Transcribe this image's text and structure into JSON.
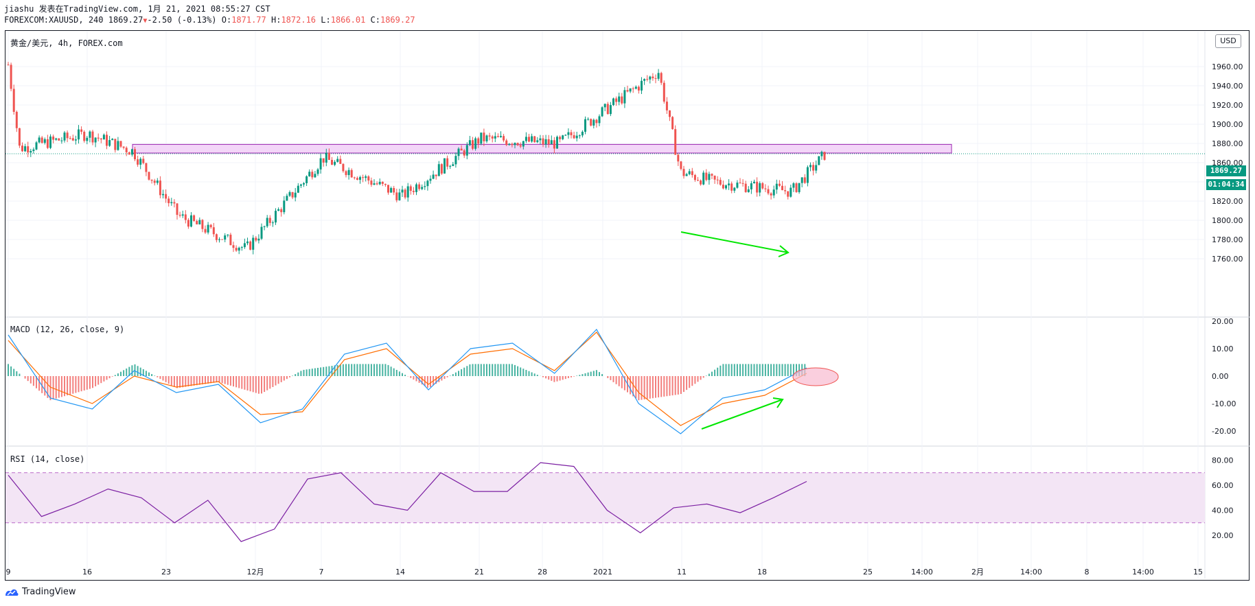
{
  "header": {
    "line1": "jiashu 发表在TradingView.com, 1月 21, 2021 08:55:27 CST",
    "symbol": "FOREXCOM:XAUUSD, 240",
    "last": "1869.27",
    "change": "-2.50 (-0.13%)",
    "o_label": "O:",
    "o_value": "1871.77",
    "h_label": "H:",
    "h_value": "1872.16",
    "l_label": "L:",
    "l_value": "1866.01",
    "c_label": "C:",
    "c_value": "1869.27"
  },
  "price_pane": {
    "title": "黄金/美元, 4h, FOREX.com",
    "currency_button": "USD",
    "last_price_tag": "1869.27",
    "countdown_tag": "01:04:34"
  },
  "macd_pane": {
    "title": "MACD (12, 26, close, 9)"
  },
  "rsi_pane": {
    "title": "RSI (14, close)"
  },
  "footer": {
    "brand": "TradingView"
  },
  "colors": {
    "up": "#089981",
    "down": "#ef5350",
    "macd_line": "#2196f3",
    "signal_line": "#ff6d00",
    "rsi_line": "#7b1fa2",
    "rsi_band": "#f3e5f5",
    "zone_fill": "#f3d6f8",
    "zone_border": "#9c27b0",
    "arrow": "#00e600",
    "ellipse": "#f8bbd0"
  },
  "chart_data": [
    {
      "type": "candlestick",
      "title": "黄金/美元, 4h, FOREX.com",
      "x_ticks": [
        "9",
        "16",
        "23",
        "12月",
        "7",
        "14",
        "21",
        "28",
        "2021",
        "11",
        "18",
        "25",
        "14:00",
        "2月",
        "14:00",
        "8",
        "14:00",
        "15"
      ],
      "y_ticks": [
        1760,
        1780,
        1800,
        1820,
        1840,
        1860,
        1880,
        1900,
        1920,
        1940,
        1960
      ],
      "ylim": [
        1750,
        1975
      ],
      "last_close": 1869.27,
      "key_closes": [
        {
          "date": "11-09",
          "price": 1962
        },
        {
          "date": "11-10",
          "price": 1875
        },
        {
          "date": "11-16",
          "price": 1890
        },
        {
          "date": "11-20",
          "price": 1872
        },
        {
          "date": "11-24",
          "price": 1805
        },
        {
          "date": "11-30",
          "price": 1770
        },
        {
          "date": "12-07",
          "price": 1865
        },
        {
          "date": "12-14",
          "price": 1825
        },
        {
          "date": "12-21",
          "price": 1885
        },
        {
          "date": "12-28",
          "price": 1880
        },
        {
          "date": "01-06",
          "price": 1955
        },
        {
          "date": "01-08",
          "price": 1850
        },
        {
          "date": "01-11",
          "price": 1840
        },
        {
          "date": "01-18",
          "price": 1830
        },
        {
          "date": "01-21",
          "price": 1869.27
        }
      ],
      "resistance_zone": [
        1870,
        1879
      ],
      "annotation": "divergence arrow (lower lows in price)"
    },
    {
      "type": "line",
      "title": "MACD (12, 26, close, 9)",
      "y_ticks": [
        -20,
        -10,
        0,
        10,
        20
      ],
      "ylim": [
        -22,
        22
      ],
      "series": [
        {
          "name": "MACD",
          "values": [
            15,
            -8,
            -12,
            2,
            -6,
            -3,
            -17,
            -12,
            8,
            12,
            -5,
            10,
            12,
            1,
            17,
            -10,
            -21,
            -8,
            -5,
            3
          ]
        },
        {
          "name": "Signal",
          "values": [
            13,
            -4,
            -10,
            0,
            -4,
            -2,
            -14,
            -13,
            6,
            10,
            -3,
            8,
            10,
            2,
            16,
            -6,
            -18,
            -10,
            -7,
            1
          ]
        }
      ]
    },
    {
      "type": "line",
      "title": "RSI (14, close)",
      "y_ticks": [
        20,
        40,
        60,
        80
      ],
      "ylim": [
        10,
        85
      ],
      "bands": [
        30,
        70
      ],
      "series": [
        {
          "name": "RSI",
          "values": [
            68,
            35,
            45,
            57,
            50,
            30,
            48,
            15,
            25,
            65,
            70,
            45,
            40,
            70,
            55,
            55,
            78,
            75,
            40,
            22,
            42,
            45,
            38,
            50,
            63
          ]
        }
      ]
    }
  ]
}
